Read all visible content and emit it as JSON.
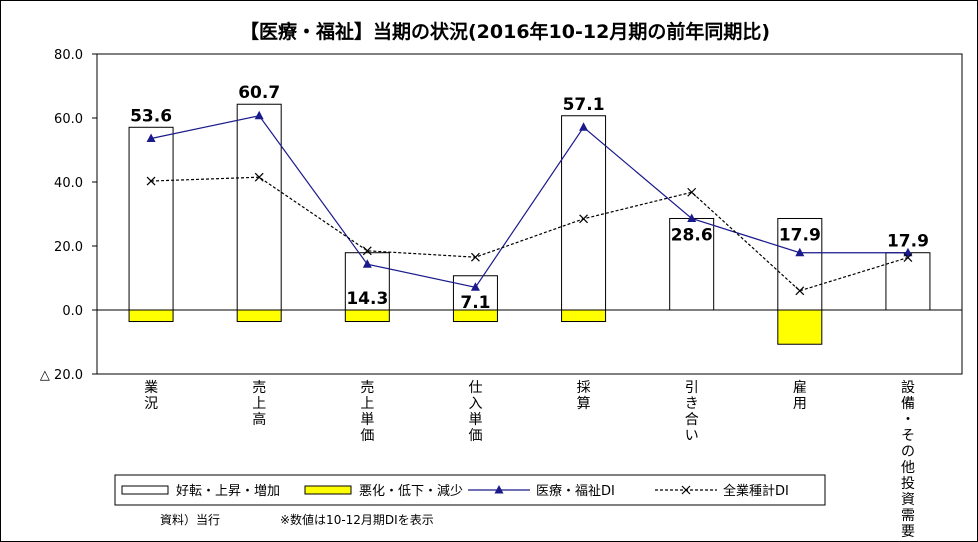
{
  "chart_data": {
    "type": "bar",
    "title": "【医療・福祉】当期の状況(2016年10-12月期の前年同期比)",
    "categories": [
      "業況",
      "売上高",
      "売上単価",
      "仕入単価",
      "採算",
      "引き合い",
      "雇用",
      "設備・その他投資需要"
    ],
    "ylim": [
      -20,
      80
    ],
    "yticks": [
      {
        "value": 80,
        "label": "80.0"
      },
      {
        "value": 60,
        "label": "60.0"
      },
      {
        "value": 40,
        "label": "40.0"
      },
      {
        "value": 20,
        "label": "20.0"
      },
      {
        "value": 0,
        "label": "0.0"
      },
      {
        "value": -20,
        "label": "△ 20.0"
      }
    ],
    "series": [
      {
        "name": "好転・上昇・増加",
        "kind": "bar",
        "color": "#ffffff",
        "values": [
          57.1,
          64.3,
          17.9,
          10.7,
          60.7,
          28.6,
          28.6,
          17.9
        ]
      },
      {
        "name": "悪化・低下・減少",
        "kind": "bar",
        "color": "#ffff00",
        "values": [
          -3.6,
          -3.6,
          -3.6,
          -3.6,
          -3.6,
          0.0,
          -10.7,
          0.0
        ]
      },
      {
        "name": "医療・福祉DI",
        "kind": "line",
        "color": "#1a1a8c",
        "values": [
          53.6,
          60.7,
          14.3,
          7.1,
          57.1,
          28.6,
          17.9,
          17.9
        ]
      },
      {
        "name": "全業種計DI",
        "kind": "line",
        "color": "#000000",
        "dashed": true,
        "values": [
          40.3,
          41.5,
          18.5,
          16.5,
          28.5,
          36.8,
          6.0,
          16.4
        ]
      }
    ],
    "data_labels": [
      "53.6",
      "60.7",
      "14.3",
      "7.1",
      "57.1",
      "28.6",
      "17.9",
      "17.9"
    ],
    "legend_position": "bottom"
  },
  "footer": {
    "source": "資料）当行",
    "note": "※数値は10-12月期DIを表示"
  }
}
